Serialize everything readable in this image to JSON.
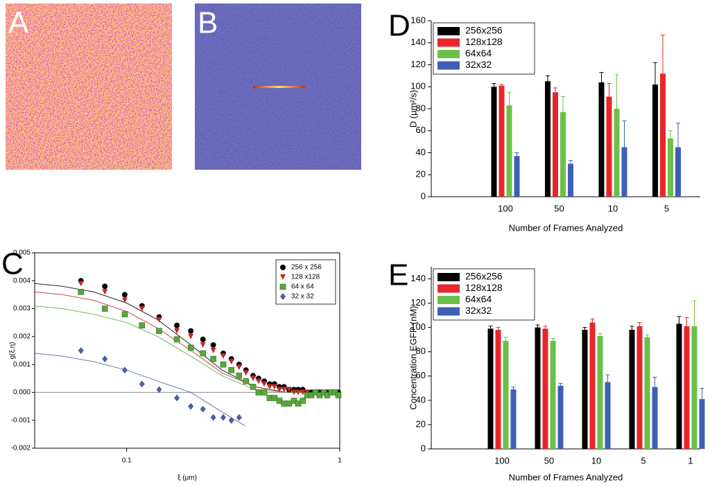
{
  "panel_labels": [
    "A",
    "B",
    "C",
    "D",
    "E"
  ],
  "chart_data": [
    {
      "type": "scatter",
      "xlabel": "ξ (μm)",
      "ylabel": "g(ξ,η)",
      "log_x": true,
      "legend": "upper right",
      "xlim": [
        0.037,
        1
      ],
      "xticks": [
        0.1,
        1
      ],
      "ylim": [
        -0.002,
        0.005
      ],
      "yticks": [
        0.005,
        0.004,
        0.003,
        0.002,
        0.001,
        {
          "value": 0,
          "label": "0.000"
        },
        -0.001,
        -0.002
      ],
      "series": [
        {
          "name": "256 x 256",
          "color": "#000000",
          "marker": "circle",
          "x": [
            0.061,
            0.079,
            0.098,
            0.118,
            0.142,
            0.172,
            0.2,
            0.228,
            0.255,
            0.284,
            0.31,
            0.337,
            0.363,
            0.392,
            0.416,
            0.442,
            0.469,
            0.494,
            0.521,
            0.548,
            0.578,
            0.61,
            0.638,
            0.671,
            0.703,
            0.735,
            0.769,
            0.805,
            0.842,
            0.874,
            0.914,
            0.948,
            0.985
          ],
          "values": [
            0.004,
            0.0038,
            0.0035,
            0.0031,
            0.0027,
            0.0024,
            0.0022,
            0.0019,
            0.0017,
            0.0014,
            0.0012,
            0.001,
            0.0008,
            0.0006,
            0.0005,
            0.0004,
            0.0003,
            0.0003,
            0.0002,
            0.0002,
            0.0001,
            0.0001,
            0.0001,
            0.0001,
            0.0,
            0.0,
            0.0,
            0.0,
            0.0,
            0.0,
            0.0,
            0.0,
            0.0
          ],
          "fit_x": [
            0.037,
            0.05,
            0.07,
            0.1,
            0.14,
            0.2,
            0.28,
            0.4,
            0.56,
            0.8,
            1
          ],
          "fit_values": [
            0.0039,
            0.0038,
            0.0036,
            0.0032,
            0.0026,
            0.0017,
            0.0008,
            0.0002,
            0.0,
            0.0,
            0.0
          ]
        },
        {
          "name": "128 x128",
          "color": "#c0282a",
          "marker": "triangle",
          "x": [
            0.061,
            0.079,
            0.098,
            0.118,
            0.142,
            0.172,
            0.2,
            0.228,
            0.255,
            0.284,
            0.31,
            0.337,
            0.363,
            0.392,
            0.416,
            0.442,
            0.469,
            0.494,
            0.521,
            0.548,
            0.578,
            0.61,
            0.638,
            0.671,
            0.703,
            0.735,
            0.769,
            0.805,
            0.842,
            0.874,
            0.914,
            0.948,
            0.985
          ],
          "values": [
            0.0039,
            0.0036,
            0.0033,
            0.003,
            0.0026,
            0.0022,
            0.002,
            0.0017,
            0.0015,
            0.0013,
            0.0011,
            0.0009,
            0.0007,
            0.0005,
            0.0004,
            0.0003,
            0.0002,
            0.0002,
            0.0001,
            0.0001,
            0.0001,
            0.0,
            0.0,
            0.0,
            0.0,
            -0.0001,
            0.0,
            -0.0001,
            0.0,
            -0.0001,
            0.0,
            0.0,
            -0.0001
          ],
          "fit_x": [
            0.037,
            0.05,
            0.07,
            0.1,
            0.14,
            0.2,
            0.28,
            0.4,
            0.56,
            0.8,
            1
          ],
          "fit_values": [
            0.0036,
            0.0035,
            0.0033,
            0.0029,
            0.0023,
            0.0015,
            0.0007,
            0.0002,
            0.0,
            0.0,
            0.0
          ]
        },
        {
          "name": "64 x 64",
          "color": "#5aa83c",
          "marker": "square",
          "x": [
            0.061,
            0.079,
            0.098,
            0.118,
            0.142,
            0.172,
            0.2,
            0.228,
            0.255,
            0.284,
            0.31,
            0.337,
            0.363,
            0.392,
            0.416,
            0.442,
            0.469,
            0.494,
            0.521,
            0.548,
            0.578,
            0.61,
            0.638,
            0.671,
            0.703,
            0.735,
            0.769,
            0.805,
            0.842,
            0.874,
            0.914,
            0.948,
            0.985
          ],
          "values": [
            0.0036,
            0.003,
            0.0028,
            0.0024,
            0.0022,
            0.0019,
            0.0016,
            0.0014,
            0.0012,
            0.001,
            0.0008,
            0.0006,
            0.0004,
            0.0002,
            0.0,
            0.0,
            -0.0002,
            -0.0002,
            -0.0003,
            -0.0004,
            -0.0004,
            -0.0003,
            -0.0004,
            -0.0003,
            -0.0001,
            -0.0001,
            0.0,
            -0.0001,
            0.0,
            -0.0001,
            0.0,
            0.0,
            -0.0001
          ],
          "fit_x": [
            0.037,
            0.05,
            0.07,
            0.1,
            0.14,
            0.2,
            0.28,
            0.4,
            0.56,
            0.8,
            1
          ],
          "fit_values": [
            0.0031,
            0.003,
            0.0028,
            0.0025,
            0.002,
            0.0013,
            0.0006,
            0.0001,
            0.0,
            0.0,
            0.0
          ]
        },
        {
          "name": "32 x 32",
          "color": "#4a5fa8",
          "marker": "diamond",
          "x": [
            0.061,
            0.079,
            0.098,
            0.118,
            0.142,
            0.172,
            0.2,
            0.228,
            0.255,
            0.284,
            0.31,
            0.337
          ],
          "values": [
            0.0015,
            0.0012,
            0.0008,
            0.0003,
            0.0001,
            -0.0002,
            -0.0005,
            -0.0006,
            -0.0009,
            -0.0009,
            -0.001,
            -0.0009
          ],
          "fit_x": [
            0.037,
            0.05,
            0.07,
            0.1,
            0.14,
            0.2,
            0.28,
            0.36
          ],
          "fit_values": [
            0.0014,
            0.0013,
            0.0011,
            0.0008,
            0.0004,
            0.0,
            -0.0007,
            -0.0012
          ]
        }
      ]
    },
    {
      "type": "bar",
      "xlabel": "Number of Frames Analyzed",
      "ylabel": "D (μm²/s)",
      "legend": "upper left",
      "categories": [
        "100",
        "50",
        "10",
        "5"
      ],
      "ylim": [
        0,
        160
      ],
      "yticks": [
        0,
        20,
        40,
        60,
        80,
        100,
        120,
        140,
        160
      ],
      "series": [
        {
          "name": "256x256",
          "color": "#000000",
          "values": [
            100,
            105,
            104,
            102
          ],
          "errors": [
            3,
            5,
            9,
            20
          ]
        },
        {
          "name": "128x128",
          "color": "#e8262a",
          "values": [
            101,
            95,
            91,
            112
          ],
          "errors": [
            1,
            4,
            12,
            35
          ]
        },
        {
          "name": "64x64",
          "color": "#6cc04a",
          "values": [
            83,
            77,
            80,
            53
          ],
          "errors": [
            12,
            14,
            31,
            7
          ]
        },
        {
          "name": "32x32",
          "color": "#3e5fb4",
          "values": [
            37,
            30,
            45,
            45
          ],
          "errors": [
            3,
            3,
            24,
            22
          ]
        }
      ]
    },
    {
      "type": "bar",
      "xlabel": "Number of Frames Analyzed",
      "ylabel": "Concentration EGFP (nM)",
      "legend": "upper left",
      "categories": [
        "100",
        "50",
        "10",
        "5",
        "1"
      ],
      "ylim": [
        0,
        150
      ],
      "yticks": [
        0,
        20,
        40,
        60,
        80,
        100,
        120,
        140
      ],
      "series": [
        {
          "name": "256x256",
          "color": "#000000",
          "values": [
            99,
            100,
            98,
            98,
            103
          ],
          "errors": [
            2,
            2,
            2,
            3,
            6
          ]
        },
        {
          "name": "128x128",
          "color": "#e8262a",
          "values": [
            98,
            99,
            104,
            101,
            101
          ],
          "errors": [
            2,
            2,
            3,
            3,
            7
          ]
        },
        {
          "name": "64x64",
          "color": "#6cc04a",
          "values": [
            89,
            89,
            93,
            92,
            101
          ],
          "errors": [
            3,
            2,
            2,
            2,
            21
          ]
        },
        {
          "name": "32x32",
          "color": "#3e5fb4",
          "values": [
            49,
            52,
            55,
            51,
            41
          ],
          "errors": [
            2,
            2,
            6,
            8,
            9
          ]
        }
      ]
    }
  ]
}
